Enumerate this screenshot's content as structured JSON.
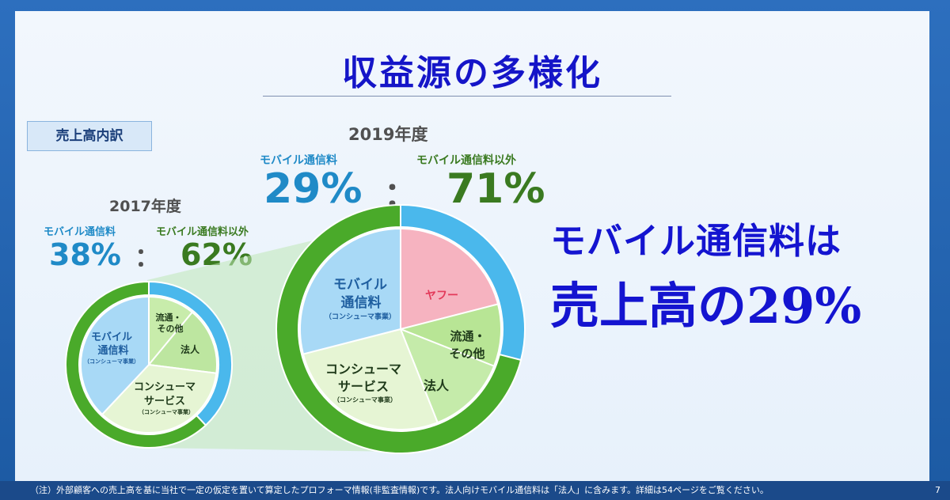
{
  "slide": {
    "title": "収益源の多様化",
    "tag": "売上高内訳",
    "headline_line1": "モバイル通信料は",
    "headline_line2": "売上高の29%"
  },
  "fy2017": {
    "year": "2017年度",
    "mobile_label": "モバイル通信料",
    "other_label": "モバイル通信料以外",
    "mobile_pct": "38%",
    "colon": "：",
    "other_pct": "62%",
    "inner_labels": {
      "mobile_line1": "モバイル",
      "mobile_line2": "通信料",
      "mobile_sub": "（コンシューマ事業）",
      "retail_line1": "流通・",
      "retail_line2": "その他",
      "corporate": "法人",
      "consumer_line1": "コンシューマ",
      "consumer_line2": "サービス",
      "consumer_sub": "（コンシューマ事業）"
    }
  },
  "fy2019": {
    "year": "2019年度",
    "mobile_label": "モバイル通信料",
    "other_label": "モバイル通信料以外",
    "mobile_pct": "29%",
    "colon": "：",
    "other_pct": "71%",
    "inner_labels": {
      "mobile_line1": "モバイル",
      "mobile_line2": "通信料",
      "mobile_sub": "（コンシューマ事業）",
      "yahoo": "ヤフー",
      "retail_line1": "流通・",
      "retail_line2": "その他",
      "corporate": "法人",
      "consumer_line1": "コンシューマ",
      "consumer_line2": "サービス",
      "consumer_sub": "（コンシューマ事業）"
    }
  },
  "chart_data": [
    {
      "type": "pie",
      "title": "2017年度",
      "series": [
        {
          "name": "outer",
          "categories": [
            "モバイル通信料",
            "モバイル通信料以外"
          ],
          "values": [
            38,
            62
          ],
          "colors": [
            "#4ab8ec",
            "#4aaa2a"
          ]
        },
        {
          "name": "inner",
          "categories": [
            "流通・その他",
            "法人",
            "コンシューマサービス",
            "モバイル通信料"
          ],
          "values": [
            11,
            16,
            35,
            38
          ],
          "colors": [
            "#c8ecab",
            "#bde6a0",
            "#e6f5d4",
            "#a8d9f6"
          ]
        }
      ]
    },
    {
      "type": "pie",
      "title": "2019年度",
      "series": [
        {
          "name": "outer",
          "categories": [
            "モバイル通信料",
            "モバイル通信料以外"
          ],
          "values": [
            29,
            71
          ],
          "colors": [
            "#4ab8ec",
            "#4aaa2a"
          ]
        },
        {
          "name": "inner",
          "categories": [
            "ヤフー",
            "流通・その他",
            "法人",
            "コンシューマサービス",
            "モバイル通信料"
          ],
          "values": [
            21,
            10,
            13,
            27,
            29
          ],
          "colors": [
            "#f6b3c0",
            "#b8e595",
            "#c5ebaa",
            "#e6f5d4",
            "#a8d9f6"
          ]
        }
      ]
    }
  ],
  "footer": {
    "note": "（注）外部顧客への売上高を基に当社で一定の仮定を置いて算定したプロフォーマ情報(非監査情報)です。法人向けモバイル通信料は「法人」に含みます。詳細は54ページをご覧ください。",
    "page": "7"
  }
}
